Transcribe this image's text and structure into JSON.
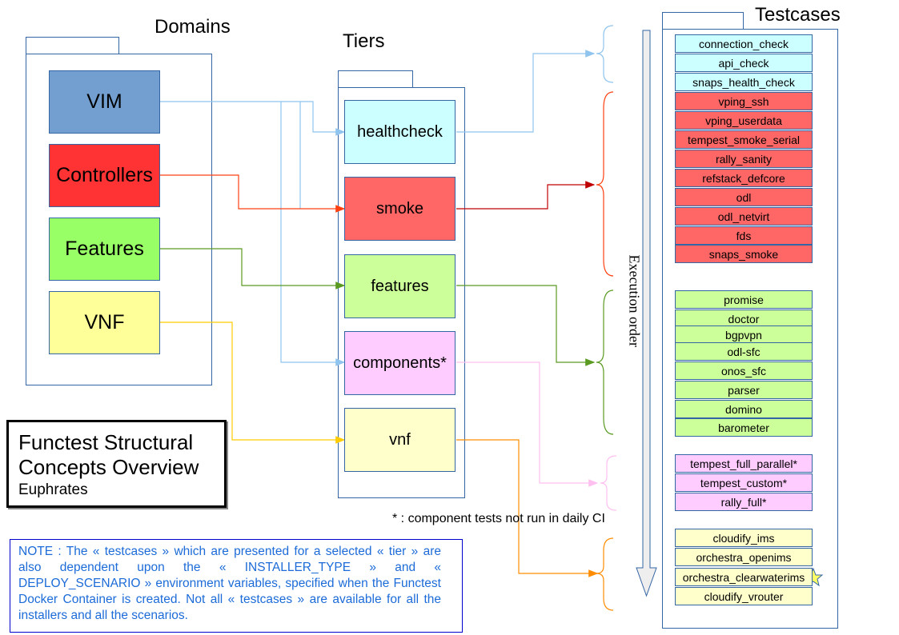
{
  "headers": {
    "domains": "Domains",
    "tiers": "Tiers",
    "testcases": "Testcases"
  },
  "domains": [
    {
      "label": "VIM",
      "color": "#729fcf"
    },
    {
      "label": "Controllers",
      "color": "#ff3333"
    },
    {
      "label": "Features",
      "color": "#99ff66"
    },
    {
      "label": "VNF",
      "color": "#ffff99"
    }
  ],
  "tiers": [
    {
      "label": "healthcheck",
      "color": "#ccffff"
    },
    {
      "label": "smoke",
      "color": "#ff6666"
    },
    {
      "label": "features",
      "color": "#ccff99"
    },
    {
      "label": "components*",
      "color": "#ffccff"
    },
    {
      "label": "vnf",
      "color": "#ffffcc"
    }
  ],
  "testcases": {
    "healthcheck": [
      "connection_check",
      "api_check",
      "snaps_health_check"
    ],
    "smoke": [
      "vping_ssh",
      "vping_userdata",
      "tempest_smoke_serial",
      "rally_sanity",
      "refstack_defcore",
      "odl",
      "odl_netvirt",
      "fds",
      "snaps_smoke"
    ],
    "features": [
      "promise",
      "doctor",
      "bgpvpn",
      "odl-sfc",
      "onos_sfc",
      "parser",
      "domino",
      "barometer"
    ],
    "components": [
      "tempest_full_parallel*",
      "tempest_custom*",
      "rally_full*"
    ],
    "vnf": [
      "cloudify_ims",
      "orchestra_openims",
      "orchestra_clearwaterims",
      "cloudify_vrouter"
    ]
  },
  "starred_testcase": "orchestra_clearwaterims",
  "execution_label": "Execution order",
  "footnote": "* : component tests not run in daily CI",
  "title": {
    "line1": "Functest Structural",
    "line2": "Concepts Overview",
    "subtitle": "Euphrates"
  },
  "note": "NOTE : The « testcases » which are presented for a selected « tier » are also dependent upon the « INSTALLER_TYPE » and « DEPLOY_SCENARIO » environment variables, specified when the Functest Docker Container is created. Not all « testcases » are available for all the installers and all the scenarios.",
  "colors": {
    "border": "#3465a4",
    "vim_link": "#8fc4ee",
    "controllers_link": "#ff4010",
    "features_link": "#5a9a20",
    "vnf_link": "#ffcc00",
    "smoke_link": "#c00000",
    "components_link": "#ffc0f0",
    "vnf_tier_link": "#ff8c00",
    "note_text": "#1c6bd8",
    "note_border": "#0000cc"
  }
}
